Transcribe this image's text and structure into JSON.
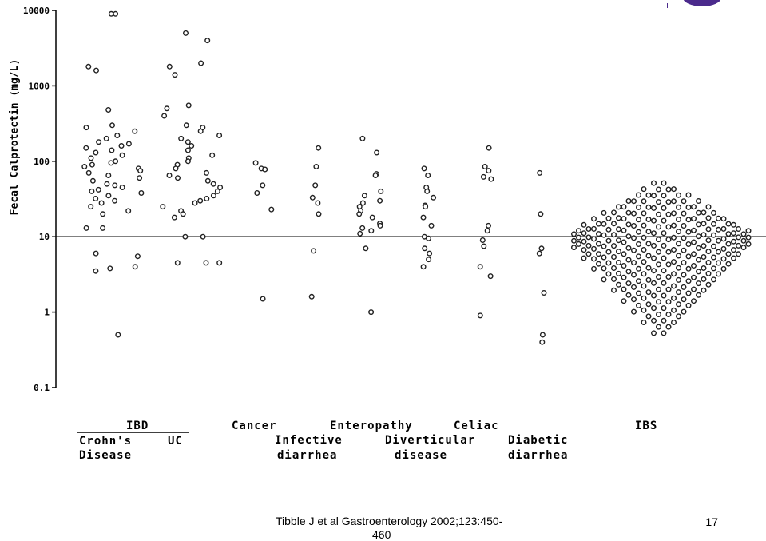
{
  "chart_data": {
    "type": "scatter",
    "yscale": "log",
    "ylim": [
      0.1,
      10000
    ],
    "ylabel": "Fecal Calprotectin (mg/L)",
    "yticks": [
      "10000",
      "1000",
      "100",
      "10",
      "1",
      "0.1"
    ],
    "reference_line": 10,
    "group_labels": {
      "ibd_header": "IBD",
      "crohns_line1": "Crohn's",
      "crohns_line2": "Disease",
      "uc": "UC",
      "cancer": "Cancer",
      "infective_line1": "Infective",
      "infective_line2": "diarrhea",
      "enteropathy": "Enteropathy",
      "diverticular_line1": "Diverticular",
      "diverticular_line2": "disease",
      "celiac": "Celiac",
      "diabetic_line1": "Diabetic",
      "diabetic_line2": "diarrhea",
      "ibs": "IBS"
    },
    "groups": [
      {
        "label": "Crohn's Disease",
        "values": [
          9000,
          9000,
          1800,
          1600,
          480,
          300,
          280,
          250,
          220,
          200,
          180,
          170,
          160,
          150,
          140,
          130,
          120,
          110,
          100,
          95,
          90,
          85,
          80,
          75,
          70,
          65,
          60,
          55,
          50,
          48,
          45,
          42,
          40,
          38,
          35,
          32,
          30,
          28,
          25,
          22,
          20,
          13,
          13,
          5.5,
          6,
          4,
          3.8,
          3.5,
          0.5
        ]
      },
      {
        "label": "UC",
        "values": [
          5000,
          4000,
          2000,
          1800,
          1400,
          550,
          500,
          400,
          300,
          280,
          250,
          220,
          200,
          180,
          160,
          140,
          120,
          110,
          100,
          90,
          80,
          70,
          65,
          60,
          55,
          50,
          45,
          40,
          35,
          32,
          30,
          28,
          25,
          22,
          20,
          18,
          10,
          10,
          4.5,
          4.5,
          4.5
        ]
      },
      {
        "label": "Cancer",
        "values": [
          95,
          80,
          78,
          48,
          38,
          23,
          1.5
        ]
      },
      {
        "label": "Infective diarrhea",
        "values": [
          150,
          85,
          48,
          33,
          28,
          20,
          6.5,
          1.6
        ]
      },
      {
        "label": "Enteropathy",
        "values": [
          200,
          130,
          68,
          65,
          40,
          35,
          30,
          28,
          25,
          22,
          20,
          18,
          15,
          14,
          13,
          12,
          11,
          7,
          1
        ]
      },
      {
        "label": "Diverticular disease",
        "values": [
          80,
          65,
          45,
          40,
          33,
          26,
          25,
          18,
          14,
          10,
          9.5,
          7,
          6,
          5,
          4
        ]
      },
      {
        "label": "Celiac",
        "values": [
          150,
          85,
          75,
          62,
          58,
          14,
          12,
          9,
          7.5,
          4,
          3,
          0.9
        ]
      },
      {
        "label": "Diabetic diarrhea",
        "values": [
          70,
          20,
          7,
          6,
          1.8,
          0.5,
          0.4
        ]
      },
      {
        "label": "IBS",
        "values": []
      }
    ]
  },
  "citation": "Tibble J et al Gastroenterology 2002;123:450-460",
  "citation_line1": "Tibble J et al Gastroenterology 2002;123:450-",
  "citation_line2": "460",
  "page_number": "17"
}
